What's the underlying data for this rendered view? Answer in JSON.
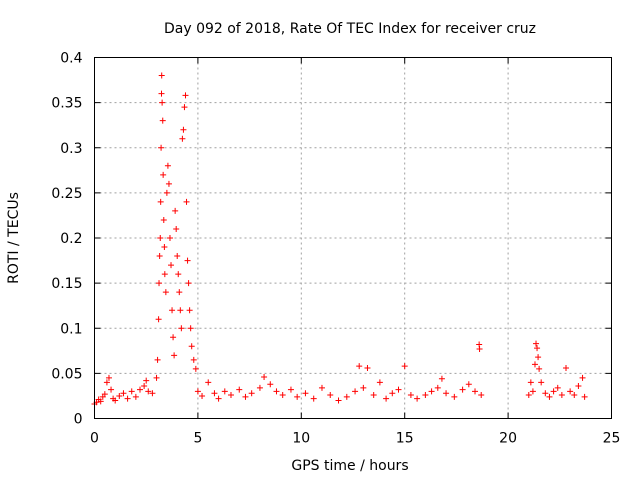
{
  "chart_data": {
    "type": "scatter",
    "title": "Day 092 of 2018, Rate Of TEC Index for receiver cruz",
    "xlabel": "GPS time / hours",
    "ylabel": "ROTI / TECUs",
    "xlim": [
      0,
      25
    ],
    "ylim": [
      0,
      0.4
    ],
    "xticks": [
      0,
      5,
      10,
      15,
      20,
      25
    ],
    "xtick_labels": [
      "0",
      "5",
      "10",
      "15",
      "20",
      "25"
    ],
    "yticks": [
      0,
      0.05,
      0.1,
      0.15,
      0.2,
      0.25,
      0.3,
      0.35,
      0.4
    ],
    "ytick_labels": [
      "0",
      "0.05",
      "0.1",
      "0.15",
      "0.2",
      "0.25",
      "0.3",
      "0.35",
      "0.4"
    ],
    "grid": true,
    "marker": "+",
    "color": "#ff0000",
    "series": [
      {
        "name": "ROTI",
        "points": [
          [
            0.0,
            0.016
          ],
          [
            0.1,
            0.018
          ],
          [
            0.2,
            0.021
          ],
          [
            0.3,
            0.019
          ],
          [
            0.4,
            0.024
          ],
          [
            0.5,
            0.027
          ],
          [
            0.6,
            0.04
          ],
          [
            0.7,
            0.045
          ],
          [
            0.8,
            0.032
          ],
          [
            0.9,
            0.022
          ],
          [
            1.0,
            0.02
          ],
          [
            1.2,
            0.025
          ],
          [
            1.4,
            0.028
          ],
          [
            1.6,
            0.022
          ],
          [
            1.8,
            0.03
          ],
          [
            2.0,
            0.024
          ],
          [
            2.2,
            0.032
          ],
          [
            2.4,
            0.036
          ],
          [
            2.5,
            0.042
          ],
          [
            2.6,
            0.03
          ],
          [
            2.8,
            0.028
          ],
          [
            3.0,
            0.045
          ],
          [
            3.05,
            0.065
          ],
          [
            3.1,
            0.11
          ],
          [
            3.12,
            0.15
          ],
          [
            3.15,
            0.18
          ],
          [
            3.18,
            0.2
          ],
          [
            3.2,
            0.24
          ],
          [
            3.22,
            0.3
          ],
          [
            3.24,
            0.36
          ],
          [
            3.25,
            0.38
          ],
          [
            3.27,
            0.35
          ],
          [
            3.3,
            0.33
          ],
          [
            3.32,
            0.27
          ],
          [
            3.35,
            0.22
          ],
          [
            3.38,
            0.19
          ],
          [
            3.4,
            0.16
          ],
          [
            3.45,
            0.14
          ],
          [
            3.5,
            0.25
          ],
          [
            3.55,
            0.28
          ],
          [
            3.6,
            0.26
          ],
          [
            3.65,
            0.2
          ],
          [
            3.7,
            0.17
          ],
          [
            3.75,
            0.12
          ],
          [
            3.8,
            0.09
          ],
          [
            3.85,
            0.07
          ],
          [
            3.9,
            0.23
          ],
          [
            3.95,
            0.21
          ],
          [
            4.0,
            0.18
          ],
          [
            4.05,
            0.16
          ],
          [
            4.1,
            0.14
          ],
          [
            4.15,
            0.12
          ],
          [
            4.2,
            0.1
          ],
          [
            4.25,
            0.31
          ],
          [
            4.3,
            0.32
          ],
          [
            4.35,
            0.345
          ],
          [
            4.4,
            0.358
          ],
          [
            4.45,
            0.24
          ],
          [
            4.5,
            0.175
          ],
          [
            4.55,
            0.15
          ],
          [
            4.6,
            0.12
          ],
          [
            4.65,
            0.1
          ],
          [
            4.7,
            0.08
          ],
          [
            4.8,
            0.065
          ],
          [
            4.9,
            0.055
          ],
          [
            5.0,
            0.03
          ],
          [
            5.2,
            0.025
          ],
          [
            5.5,
            0.04
          ],
          [
            5.8,
            0.028
          ],
          [
            6.0,
            0.022
          ],
          [
            6.3,
            0.03
          ],
          [
            6.6,
            0.026
          ],
          [
            7.0,
            0.032
          ],
          [
            7.3,
            0.024
          ],
          [
            7.6,
            0.028
          ],
          [
            8.0,
            0.034
          ],
          [
            8.2,
            0.046
          ],
          [
            8.5,
            0.038
          ],
          [
            8.8,
            0.03
          ],
          [
            9.1,
            0.026
          ],
          [
            9.5,
            0.032
          ],
          [
            9.8,
            0.024
          ],
          [
            10.2,
            0.028
          ],
          [
            10.6,
            0.022
          ],
          [
            11.0,
            0.034
          ],
          [
            11.4,
            0.026
          ],
          [
            11.8,
            0.02
          ],
          [
            12.2,
            0.024
          ],
          [
            12.6,
            0.03
          ],
          [
            12.8,
            0.058
          ],
          [
            13.0,
            0.034
          ],
          [
            13.2,
            0.056
          ],
          [
            13.5,
            0.026
          ],
          [
            13.8,
            0.04
          ],
          [
            14.1,
            0.022
          ],
          [
            14.4,
            0.028
          ],
          [
            14.7,
            0.032
          ],
          [
            15.0,
            0.058
          ],
          [
            15.3,
            0.026
          ],
          [
            15.6,
            0.022
          ],
          [
            16.0,
            0.026
          ],
          [
            16.3,
            0.03
          ],
          [
            16.6,
            0.034
          ],
          [
            16.8,
            0.044
          ],
          [
            17.0,
            0.028
          ],
          [
            17.4,
            0.024
          ],
          [
            17.8,
            0.032
          ],
          [
            18.1,
            0.038
          ],
          [
            18.4,
            0.03
          ],
          [
            18.6,
            0.082
          ],
          [
            18.62,
            0.077
          ],
          [
            18.7,
            0.026
          ],
          [
            21.0,
            0.026
          ],
          [
            21.1,
            0.04
          ],
          [
            21.2,
            0.03
          ],
          [
            21.3,
            0.06
          ],
          [
            21.35,
            0.083
          ],
          [
            21.4,
            0.078
          ],
          [
            21.45,
            0.068
          ],
          [
            21.5,
            0.055
          ],
          [
            21.6,
            0.04
          ],
          [
            21.8,
            0.028
          ],
          [
            22.0,
            0.024
          ],
          [
            22.2,
            0.03
          ],
          [
            22.4,
            0.034
          ],
          [
            22.6,
            0.026
          ],
          [
            22.8,
            0.056
          ],
          [
            23.0,
            0.03
          ],
          [
            23.2,
            0.026
          ],
          [
            23.4,
            0.036
          ],
          [
            23.6,
            0.045
          ],
          [
            23.7,
            0.024
          ]
        ]
      }
    ]
  }
}
